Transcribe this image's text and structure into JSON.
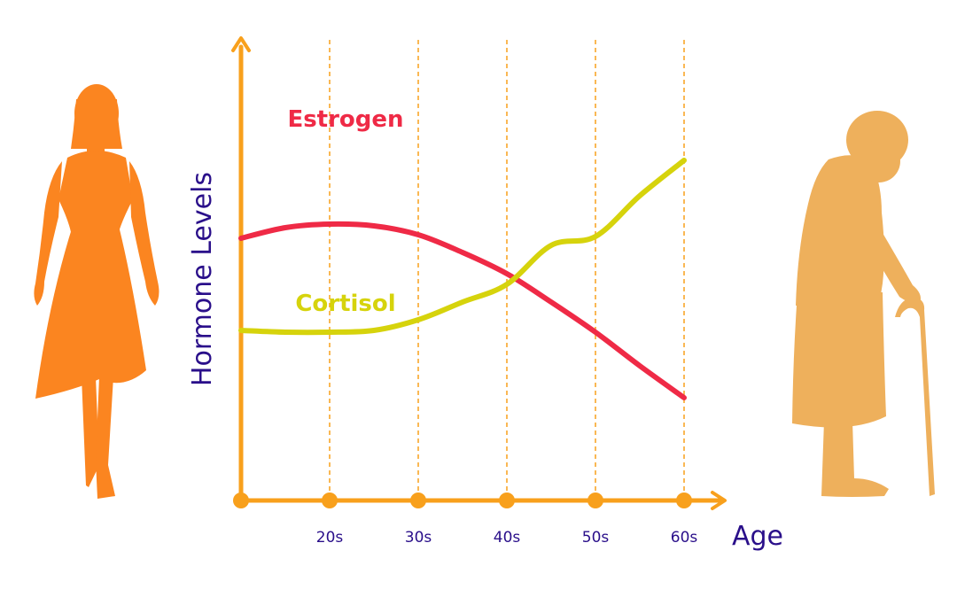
{
  "chart_data": {
    "type": "line",
    "title": "",
    "xlabel": "Age",
    "ylabel": "Hormone Levels",
    "categories": [
      "",
      "20s",
      "30s",
      "40s",
      "50s",
      "60s"
    ],
    "x": [
      10,
      20,
      30,
      40,
      50,
      60
    ],
    "xlim": [
      10,
      63
    ],
    "ylim": [
      0,
      10
    ],
    "grid": "vertical dashed",
    "legend": "inline labels",
    "series": [
      {
        "name": "Estrogen",
        "color": "#ef2a46",
        "x": [
          10,
          15,
          20,
          25,
          30,
          35,
          40,
          45,
          50,
          55,
          60
        ],
        "values": [
          7.4,
          7.7,
          7.8,
          7.75,
          7.5,
          7.0,
          6.4,
          5.6,
          4.75,
          3.8,
          2.9
        ]
      },
      {
        "name": "Cortisol",
        "color": "#d6d30c",
        "x": [
          10,
          15,
          20,
          25,
          30,
          35,
          40,
          45,
          50,
          55,
          60
        ],
        "values": [
          4.8,
          4.75,
          4.75,
          4.8,
          5.1,
          5.6,
          6.1,
          7.2,
          7.45,
          8.6,
          9.6
        ]
      }
    ],
    "colors": {
      "axis": "#f8a01c",
      "text": "#2a0f8a",
      "young_silhouette": "#fb8520",
      "old_silhouette": "#eeb05c"
    }
  },
  "illustrations": {
    "left": "young-woman-silhouette",
    "right": "elderly-woman-with-cane-silhouette"
  }
}
